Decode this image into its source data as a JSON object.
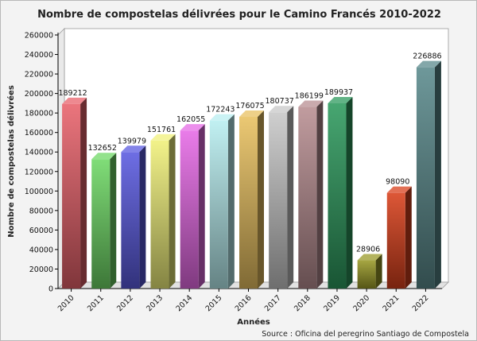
{
  "chart_data": {
    "type": "bar",
    "title": "Nombre de compostelas délivrées pour le Camino Francés 2010-2022",
    "xlabel": "Années",
    "ylabel": "Nombre de compostelas délivrées",
    "ylim": [
      0,
      260000
    ],
    "yticks": [
      0,
      20000,
      40000,
      60000,
      80000,
      100000,
      120000,
      140000,
      160000,
      180000,
      200000,
      220000,
      240000,
      260000
    ],
    "grid": false,
    "source": "Source : Oficina del peregrino Santiago de Compostela",
    "categories": [
      "2010",
      "2011",
      "2012",
      "2013",
      "2014",
      "2015",
      "2016",
      "2017",
      "2018",
      "2019",
      "2020",
      "2021",
      "2022"
    ],
    "values": [
      189212,
      132652,
      139979,
      151761,
      162055,
      172243,
      176075,
      180737,
      186199,
      189937,
      28906,
      98090,
      226886
    ],
    "colors": [
      "#e8626b",
      "#6fd866",
      "#5a5ae0",
      "#f0f07a",
      "#e66ae6",
      "#b8eef0",
      "#e8c060",
      "#c8c8c8",
      "#b88e92",
      "#2e9a5e",
      "#9a9a28",
      "#d8401c",
      "#5a8a8c"
    ]
  }
}
